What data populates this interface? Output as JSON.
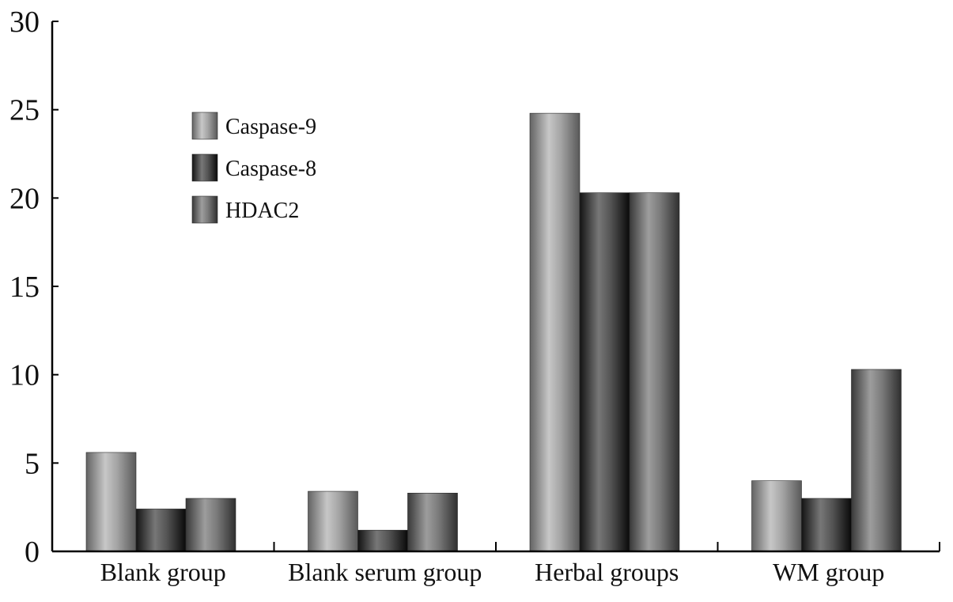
{
  "chart_data": {
    "type": "bar",
    "title": "",
    "xlabel": "",
    "ylabel": "",
    "ylim": [
      0,
      30
    ],
    "yticks": [
      0,
      5,
      10,
      15,
      20,
      25,
      30
    ],
    "categories": [
      "Blank group",
      "Blank serum group",
      "Herbal groups",
      "WM group"
    ],
    "series": [
      {
        "name": "Caspase-9",
        "values": [
          5.6,
          3.4,
          24.8,
          4.0
        ]
      },
      {
        "name": "Caspase-8",
        "values": [
          2.4,
          1.2,
          20.3,
          3.0
        ]
      },
      {
        "name": "HDAC2",
        "values": [
          3.0,
          3.3,
          20.3,
          10.3
        ]
      }
    ],
    "colors": {
      "Caspase-9": "#9a9a9a",
      "Caspase-8": "#4a4a4a",
      "HDAC2": "#707070"
    },
    "grid": false,
    "legend_position": "top-left"
  }
}
